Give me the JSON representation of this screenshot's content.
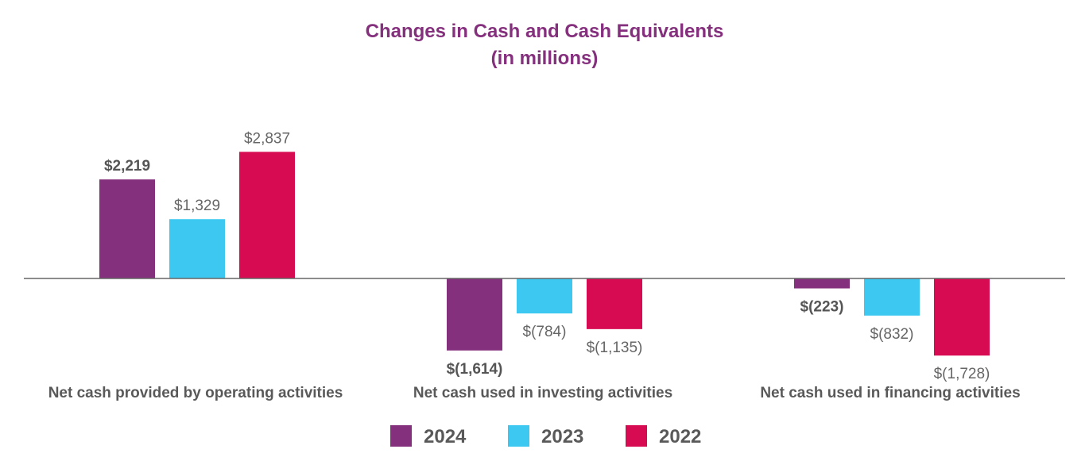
{
  "chart_data": {
    "type": "bar",
    "title": "Changes in Cash and Cash Equivalents",
    "subtitle": "(in millions)",
    "xlabel": "",
    "ylabel": "",
    "ylim": [
      -2000,
      3400
    ],
    "grid": false,
    "legend_position": "bottom-center",
    "categories": [
      "Net cash provided by operating activities",
      "Net cash used in investing activities",
      "Net cash used in financing activities"
    ],
    "series": [
      {
        "name": "2024",
        "color": "#84307d",
        "values": [
          2219,
          -1614,
          -223
        ],
        "labels": [
          "$2,219",
          "$(1,614)",
          "$(223)"
        ],
        "bold": true
      },
      {
        "name": "2023",
        "color": "#3cc8f0",
        "values": [
          1329,
          -784,
          -832
        ],
        "labels": [
          "$1,329",
          "$(784)",
          "$(832)"
        ],
        "bold": false
      },
      {
        "name": "2022",
        "color": "#d60b52",
        "values": [
          2837,
          -1135,
          -1728
        ],
        "labels": [
          "$2,837",
          "$(1,135)",
          "$(1,728)"
        ],
        "bold": false
      }
    ]
  }
}
